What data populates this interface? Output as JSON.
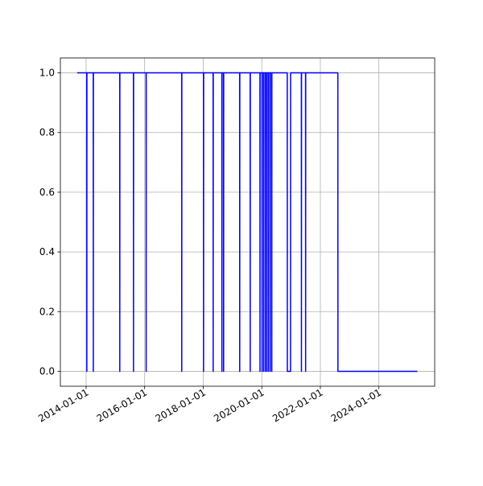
{
  "chart_data": {
    "type": "line",
    "color": "#0000ff",
    "grid": true,
    "x": [
      "2013-09-12",
      "2014-01-09",
      "2014-01-10",
      "2014-01-11",
      "2014-03-31",
      "2014-04-01",
      "2014-04-02",
      "2015-02-24",
      "2015-02-25",
      "2015-02-26",
      "2015-08-14",
      "2015-08-15",
      "2015-08-16",
      "2016-01-19",
      "2016-01-20",
      "2016-01-21",
      "2017-04-07",
      "2017-04-08",
      "2017-04-09",
      "2018-01-04",
      "2018-01-05",
      "2018-01-06",
      "2018-05-04",
      "2018-05-05",
      "2018-05-06",
      "2018-08-21",
      "2018-08-22",
      "2018-08-23",
      "2018-09-11",
      "2018-09-12",
      "2018-09-13",
      "2019-03-31",
      "2019-04-01",
      "2019-04-02",
      "2019-08-09",
      "2019-08-10",
      "2019-08-11",
      "2019-12-09",
      "2019-12-10",
      "2019-12-11",
      "2020-01-04",
      "2020-01-05",
      "2020-01-06",
      "2020-01-24",
      "2020-01-25",
      "2020-01-26",
      "2020-02-14",
      "2020-02-15",
      "2020-02-16",
      "2020-03-04",
      "2020-03-05",
      "2020-03-06",
      "2020-03-24",
      "2020-03-25",
      "2020-03-26",
      "2020-04-14",
      "2020-04-15",
      "2020-04-16",
      "2020-05-04",
      "2020-05-05",
      "2020-05-06",
      "2020-11-14",
      "2020-11-15",
      "2020-12-25",
      "2020-12-26",
      "2021-05-09",
      "2021-05-10",
      "2021-05-11",
      "2021-06-30",
      "2021-07-01",
      "2021-07-02",
      "2022-08-07",
      "2022-08-08",
      "2025-04-25"
    ],
    "values": [
      1,
      1,
      0,
      1,
      1,
      0,
      1,
      1,
      0,
      1,
      1,
      0,
      1,
      1,
      0,
      1,
      1,
      0,
      1,
      1,
      0,
      1,
      1,
      0,
      1,
      1,
      0,
      1,
      1,
      0,
      1,
      1,
      0,
      1,
      1,
      0,
      1,
      1,
      0,
      1,
      1,
      0,
      1,
      1,
      0,
      1,
      1,
      0,
      1,
      1,
      0,
      1,
      1,
      0,
      1,
      1,
      0,
      1,
      1,
      0,
      1,
      1,
      0,
      0,
      1,
      1,
      0,
      1,
      1,
      0,
      1,
      1,
      0,
      0
    ],
    "xlim": [
      "2013-02-14",
      "2025-11-27"
    ],
    "xticks": [
      "2014-01-01",
      "2016-01-01",
      "2018-01-01",
      "2020-01-01",
      "2022-01-01",
      "2024-01-01"
    ],
    "ylim": [
      -0.05,
      1.05
    ],
    "yticks": [
      {
        "value": 0,
        "label": "0.0"
      },
      {
        "value": 0.2,
        "label": "0.2"
      },
      {
        "value": 0.4,
        "label": "0.4"
      },
      {
        "value": 0.6,
        "label": "0.6"
      },
      {
        "value": 0.8,
        "label": "0.8"
      },
      {
        "value": 1,
        "label": "1.0"
      }
    ]
  }
}
